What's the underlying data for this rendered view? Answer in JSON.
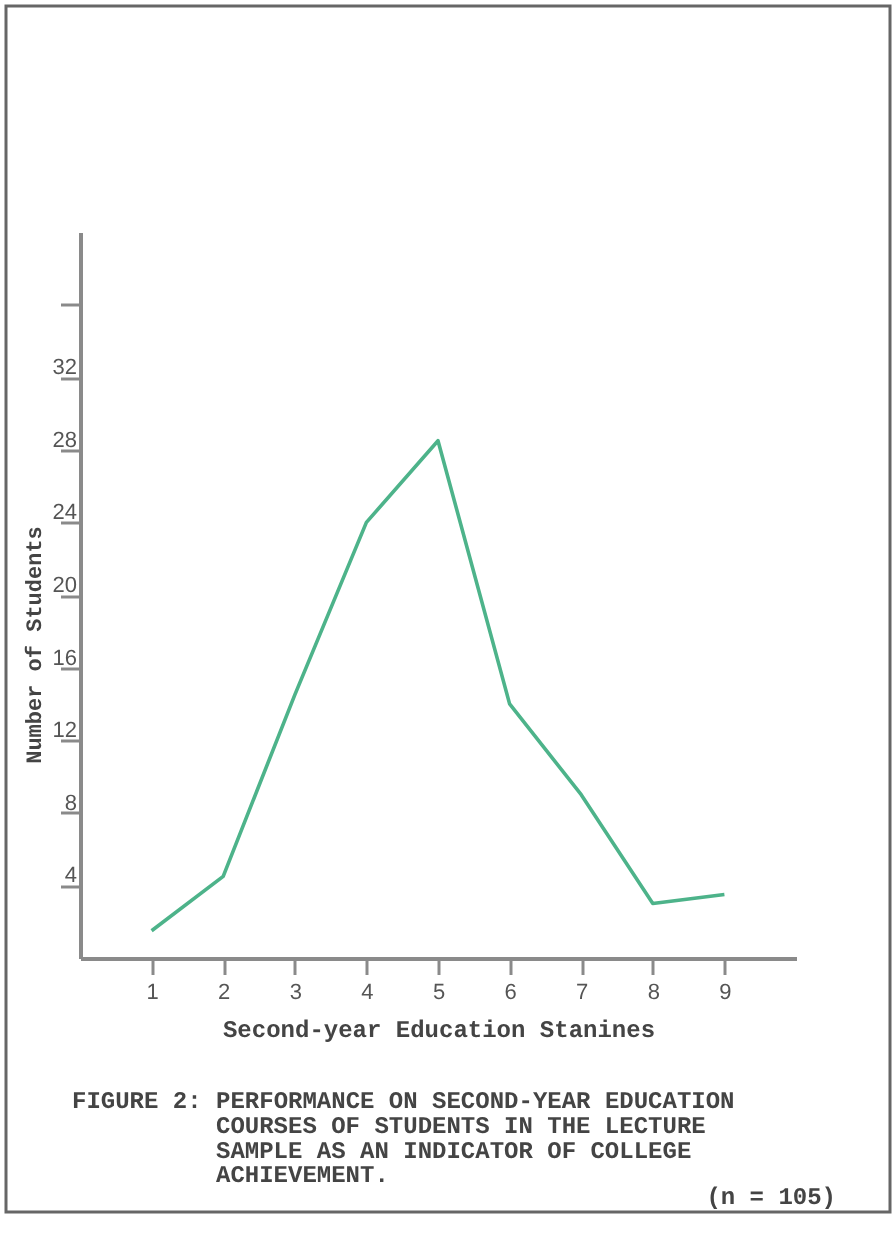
{
  "chart_data": {
    "type": "line",
    "title": "FIGURE 2: PERFORMANCE ON SECOND-YEAR EDUCATION COURSES OF STUDENTS IN THE LECTURE SAMPLE AS AN INDICATOR OF COLLEGE ACHIEVEMENT.",
    "xlabel": "Second-year Education Stanines",
    "ylabel": "Number of Students",
    "annotations": [
      "(n = 105)"
    ],
    "x": [
      1,
      2,
      3,
      4,
      5,
      6,
      7,
      8,
      9
    ],
    "series": [
      {
        "color": "#4db38a",
        "values": [
          1.5,
          4.5,
          14.5,
          24,
          28.5,
          14,
          9,
          3,
          3.5
        ]
      }
    ],
    "xlim": [
      0,
      10
    ],
    "xticks": [
      1,
      2,
      3,
      4,
      5,
      6,
      7,
      8,
      9
    ],
    "ylim": [
      0,
      40
    ],
    "yticks": [
      4,
      8,
      12,
      16,
      20,
      24,
      28,
      32,
      {
        "value": 36,
        "label": null
      }
    ],
    "line_style": "solid"
  }
}
